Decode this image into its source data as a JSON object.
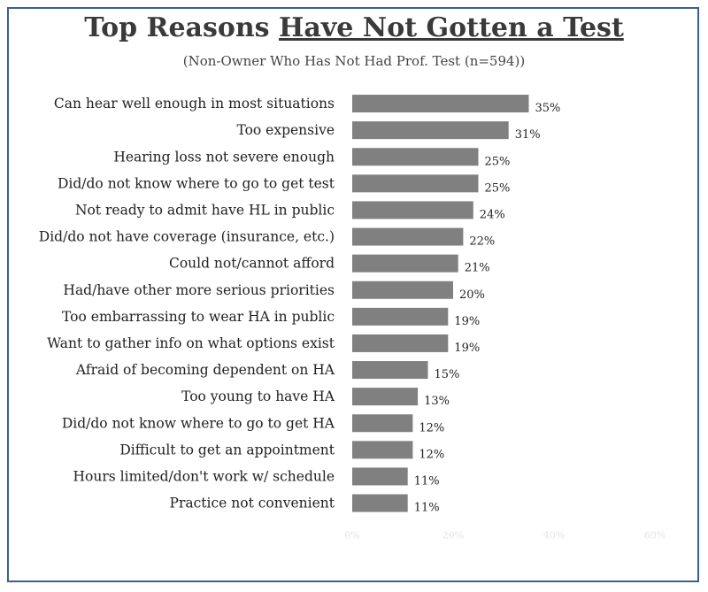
{
  "title_plain": "Top Reasons ",
  "title_underlined": "Have Not Gotten a Test",
  "subtitle": "(Non-Owner Who Has Not Had Prof. Test (n=594))",
  "chart_data": {
    "type": "bar",
    "orientation": "horizontal",
    "categories": [
      "Can hear well enough in most situations",
      "Too expensive",
      "Hearing loss not severe enough",
      "Did/do not know where to go to get test",
      "Not ready to admit have HL in public",
      "Did/do not have coverage (insurance, etc.)",
      "Could not/cannot afford",
      "Had/have other more serious priorities",
      "Too embarrassing to wear HA in public",
      "Want to gather info on what options exist",
      "Afraid of becoming dependent on HA",
      "Too young to have HA",
      "Did/do not know where to go to get HA",
      "Difficult to get an appointment",
      "Hours limited/don't work w/ schedule",
      "Practice not convenient"
    ],
    "values": [
      35,
      31,
      25,
      25,
      24,
      22,
      21,
      20,
      19,
      19,
      15,
      13,
      12,
      12,
      11,
      11
    ],
    "value_labels": [
      "35%",
      "31%",
      "25%",
      "25%",
      "24%",
      "22%",
      "21%",
      "20%",
      "19%",
      "19%",
      "15%",
      "13%",
      "12%",
      "12%",
      "11%",
      "11%"
    ],
    "xlim": [
      0,
      60
    ],
    "xticks": [
      "0%",
      "20%",
      "40%",
      "60%"
    ],
    "bar_color": "#808080",
    "grid": false,
    "legend": "none"
  }
}
